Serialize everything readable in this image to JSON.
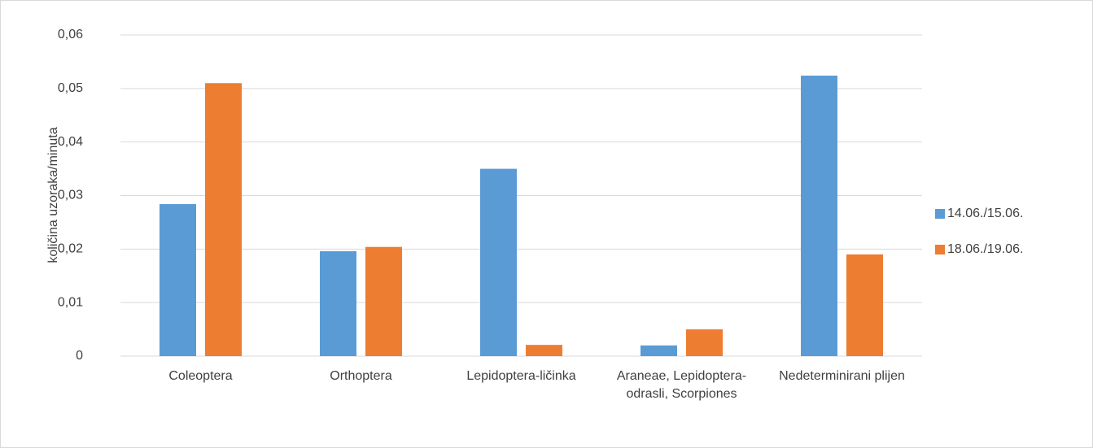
{
  "chart_data": {
    "type": "bar",
    "ylabel": "količina uzoraka/minuta",
    "categories": [
      "Coleoptera",
      "Orthoptera",
      "Lepidoptera-ličinka",
      "Araneae, Lepidoptera-odrasli, Scorpiones",
      "Nedeterminirani plijen"
    ],
    "series": [
      {
        "name": "14.06./15.06.",
        "color": "#5b9bd5",
        "values": [
          0.0284,
          0.0196,
          0.035,
          0.002,
          0.0524
        ]
      },
      {
        "name": "18.06./19.06.",
        "color": "#ed7d31",
        "values": [
          0.051,
          0.0204,
          0.0021,
          0.005,
          0.019
        ]
      }
    ],
    "ylim": [
      0,
      0.06
    ],
    "yticks": [
      0,
      {
        "value": 0.01,
        "label": "0,01"
      },
      {
        "value": 0.02,
        "label": "0,02"
      },
      {
        "value": 0.03,
        "label": "0,03"
      },
      {
        "value": 0.04,
        "label": "0,04"
      },
      {
        "value": 0.05,
        "label": "0,05"
      },
      {
        "value": 0.06,
        "label": "0,06"
      }
    ],
    "grid": true,
    "legend": "right"
  }
}
